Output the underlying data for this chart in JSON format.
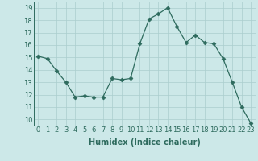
{
  "x": [
    0,
    1,
    2,
    3,
    4,
    5,
    6,
    7,
    8,
    9,
    10,
    11,
    12,
    13,
    14,
    15,
    16,
    17,
    18,
    19,
    20,
    21,
    22,
    23
  ],
  "y": [
    15.1,
    14.9,
    13.9,
    13.0,
    11.8,
    11.9,
    11.8,
    11.8,
    13.3,
    13.2,
    13.3,
    16.1,
    18.1,
    18.5,
    19.0,
    17.5,
    16.2,
    16.8,
    16.2,
    16.1,
    14.9,
    13.0,
    11.0,
    9.7
  ],
  "xlabel": "Humidex (Indice chaleur)",
  "xlim": [
    -0.5,
    23.5
  ],
  "ylim": [
    9.5,
    19.5
  ],
  "yticks": [
    10,
    11,
    12,
    13,
    14,
    15,
    16,
    17,
    18,
    19
  ],
  "xticks": [
    0,
    1,
    2,
    3,
    4,
    5,
    6,
    7,
    8,
    9,
    10,
    11,
    12,
    13,
    14,
    15,
    16,
    17,
    18,
    19,
    20,
    21,
    22,
    23
  ],
  "line_color": "#2e6b5e",
  "marker": "D",
  "marker_size": 2.5,
  "bg_color": "#cce8e8",
  "grid_color": "#aacece",
  "xlabel_fontsize": 7,
  "tick_fontsize": 6
}
